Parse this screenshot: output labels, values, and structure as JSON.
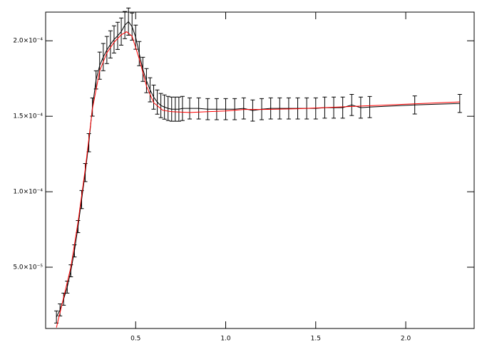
{
  "chart_data": {
    "type": "line",
    "xlim": [
      0,
      2.38
    ],
    "ylim": [
      9.4e-06,
      0.000219
    ],
    "xticks": [
      0.5,
      {
        "value": 1,
        "label": "1.0"
      },
      1.5,
      {
        "value": 2,
        "label": "2.0"
      }
    ],
    "yticks": [
      {
        "value": 5e-05,
        "label": "5.0×10⁻⁵"
      },
      {
        "value": 0.0001,
        "label": "1.0×10⁻⁴"
      },
      {
        "value": 0.00015,
        "label": "1.5×10⁻⁴"
      },
      {
        "value": 0.0002,
        "label": "2.0×10⁻⁴"
      }
    ],
    "series": [
      {
        "color": "#000000",
        "x": [
          0.06,
          0.08,
          0.1,
          0.12,
          0.14,
          0.16,
          0.18,
          0.2,
          0.22,
          0.24,
          0.26,
          0.28,
          0.3,
          0.32,
          0.34,
          0.36,
          0.38,
          0.4,
          0.42,
          0.44,
          0.46,
          0.48,
          0.5,
          0.52,
          0.54,
          0.56,
          0.58,
          0.6,
          0.62,
          0.64,
          0.66,
          0.68,
          0.7,
          0.72,
          0.74,
          0.76,
          0.8,
          0.85,
          0.9,
          0.95,
          1.0,
          1.05,
          1.1,
          1.15,
          1.2,
          1.25,
          1.3,
          1.35,
          1.4,
          1.45,
          1.5,
          1.55,
          1.6,
          1.65,
          1.7,
          1.75,
          1.8,
          2.05,
          2.3
        ],
        "values": [
          1.7e-05,
          2.17e-05,
          2.88e-05,
          3.68e-05,
          4.76e-05,
          6.08e-05,
          7.69e-05,
          9.48e-05,
          0.0001127,
          0.0001325,
          0.0001561,
          0.0001741,
          0.0001835,
          0.0001892,
          0.0001939,
          0.0001976,
          0.0002009,
          0.0002033,
          0.0002061,
          0.0002104,
          0.0002127,
          0.0002094,
          0.0002024,
          0.0001915,
          0.0001811,
          0.0001736,
          0.0001675,
          0.0001627,
          0.0001594,
          0.0001571,
          0.0001561,
          0.0001552,
          0.0001547,
          0.0001547,
          0.0001547,
          0.0001552,
          0.0001552,
          0.0001552,
          0.0001547,
          0.0001547,
          0.0001547,
          0.0001547,
          0.0001552,
          0.0001538,
          0.0001547,
          0.0001552,
          0.0001552,
          0.0001552,
          0.0001552,
          0.0001552,
          0.0001552,
          0.0001557,
          0.0001557,
          0.0001557,
          0.0001575,
          0.0001557,
          0.0001561,
          0.0001575,
          0.0001585
        ],
        "errors": [
          4e-06,
          4e-06,
          4e-06,
          4e-06,
          4e-06,
          4e-06,
          4e-06,
          6e-06,
          6e-06,
          6e-06,
          6e-06,
          6e-06,
          9e-06,
          9e-06,
          9e-06,
          9e-06,
          9e-06,
          9e-06,
          9e-06,
          9e-06,
          9e-06,
          9e-06,
          8e-06,
          8e-06,
          8e-06,
          8e-06,
          8e-06,
          8e-06,
          8e-06,
          8e-06,
          8e-06,
          8e-06,
          8e-06,
          8e-06,
          8e-06,
          8e-06,
          7e-06,
          7e-06,
          7e-06,
          7e-06,
          7e-06,
          7e-06,
          7e-06,
          7e-06,
          7e-06,
          7e-06,
          7e-06,
          7e-06,
          7e-06,
          7e-06,
          7e-06,
          7e-06,
          7e-06,
          7e-06,
          7e-06,
          7e-06,
          7e-06,
          6e-06,
          6e-06
        ]
      },
      {
        "color": "#ff0000",
        "x": [
          0.06,
          0.1,
          0.14,
          0.18,
          0.22,
          0.26,
          0.3,
          0.34,
          0.38,
          0.42,
          0.45,
          0.48,
          0.52,
          0.56,
          0.6,
          0.65,
          0.7,
          0.8,
          0.9,
          1.0,
          1.1,
          1.2,
          1.4,
          1.6,
          1.8,
          2.0,
          2.3
        ],
        "values": [
          1e-05,
          3e-05,
          5e-05,
          8e-05,
          0.000115,
          0.000155,
          0.00018,
          0.000192,
          0.000199,
          0.000204,
          0.000206,
          0.000203,
          0.000188,
          0.00017,
          0.000159,
          0.000154,
          0.000153,
          0.0001525,
          0.000153,
          0.0001535,
          0.0001545,
          0.0001545,
          0.000155,
          0.000156,
          0.000157,
          0.000158,
          0.0001595
        ]
      }
    ]
  }
}
